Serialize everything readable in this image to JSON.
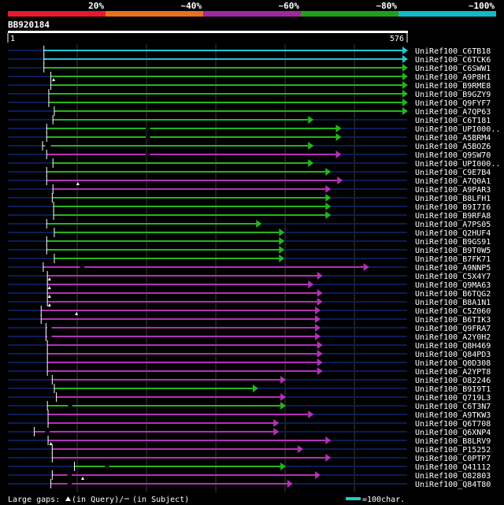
{
  "query": {
    "id": "BB920184",
    "start": "1",
    "end": "576",
    "length": 576
  },
  "legend": {
    "bins": [
      {
        "label": "20%",
        "color": "#e8172e"
      },
      {
        "label": "~40%",
        "color": "#e8711d"
      },
      {
        "label": "~60%",
        "color": "#a0289e"
      },
      {
        "label": "~80%",
        "color": "#1ea11a"
      },
      {
        "label": "~100%",
        "color": "#13b8c4"
      }
    ]
  },
  "colors": {
    "cyan": "#20c8d0",
    "green": "#22b61d",
    "magenta": "#b430b8",
    "navy": "#0c1c55",
    "grid": "#3a3a3a"
  },
  "hits": [
    {
      "name": "UniRef100_C6TB18",
      "qstart": 52,
      "qend": 576,
      "color": "cyan"
    },
    {
      "name": "UniRef100_C6TCK6",
      "qstart": 52,
      "qend": 576,
      "color": "cyan"
    },
    {
      "name": "UniRef100_C6SWW1",
      "qstart": 52,
      "qend": 576,
      "color": "green"
    },
    {
      "name": "UniRef100_A9P8H1",
      "qstart": 62,
      "qend": 576,
      "color": "green",
      "qgap": 66
    },
    {
      "name": "UniRef100_B9RME8",
      "qstart": 62,
      "qend": 576,
      "color": "green"
    },
    {
      "name": "UniRef100_B9GZY9",
      "qstart": 59,
      "qend": 576,
      "color": "green"
    },
    {
      "name": "UniRef100_Q9FYF7",
      "qstart": 59,
      "qend": 576,
      "color": "green"
    },
    {
      "name": "UniRef100_A7QP63",
      "qstart": 67,
      "qend": 576,
      "color": "green"
    },
    {
      "name": "UniRef100_C6T181",
      "qstart": 65,
      "qend": 440,
      "color": "green"
    },
    {
      "name": "UniRef100_UPI000..",
      "qstart": 56,
      "qend": 480,
      "color": "green",
      "sgap": [
        199,
        205
      ]
    },
    {
      "name": "UniRef100_A5BRM4",
      "qstart": 56,
      "qend": 480,
      "color": "green",
      "sgap": [
        199,
        205
      ]
    },
    {
      "name": "UniRef100_A5BOZ6",
      "qstart": 50,
      "qend": 440,
      "color": "green",
      "sgap": [
        54,
        62
      ]
    },
    {
      "name": "UniRef100_Q9SW70",
      "qstart": 56,
      "qend": 480,
      "color": "magenta",
      "sgap": [
        199,
        205
      ]
    },
    {
      "name": "UniRef100_UPI000..",
      "qstart": 65,
      "qend": 440,
      "color": "green"
    },
    {
      "name": "UniRef100_C9E7B4",
      "qstart": 56,
      "qend": 465,
      "color": "green"
    },
    {
      "name": "UniRef100_A7Q0A1",
      "qstart": 56,
      "qend": 482,
      "color": "magenta",
      "qgap": 101
    },
    {
      "name": "UniRef100_A9PAR3",
      "qstart": 65,
      "qend": 465,
      "color": "magenta"
    },
    {
      "name": "UniRef100_B8LFH1",
      "qstart": 64,
      "qend": 465,
      "color": "green"
    },
    {
      "name": "UniRef100_B9I7I6",
      "qstart": 66,
      "qend": 465,
      "color": "green"
    },
    {
      "name": "UniRef100_B9RFA8",
      "qstart": 66,
      "qend": 465,
      "color": "green"
    },
    {
      "name": "UniRef100_A7PS05",
      "qstart": 56,
      "qend": 365,
      "color": "green"
    },
    {
      "name": "UniRef100_Q2HUF4",
      "qstart": 67,
      "qend": 398,
      "color": "green"
    },
    {
      "name": "UniRef100_B9GS91",
      "qstart": 56,
      "qend": 398,
      "color": "green"
    },
    {
      "name": "UniRef100_B9T0W5",
      "qstart": 56,
      "qend": 398,
      "color": "green"
    },
    {
      "name": "UniRef100_B7FK71",
      "qstart": 67,
      "qend": 398,
      "color": "green"
    },
    {
      "name": "UniRef100_A9NNP5",
      "qstart": 51,
      "qend": 520,
      "color": "magenta",
      "sgap": [
        104,
        110
      ]
    },
    {
      "name": "UniRef100_C5X4Y7",
      "qstart": 57,
      "qend": 453,
      "color": "magenta",
      "qgap": 60
    },
    {
      "name": "UniRef100_Q9MA63",
      "qstart": 57,
      "qend": 440,
      "color": "magenta",
      "qgap": 60
    },
    {
      "name": "UniRef100_B6TQG2",
      "qstart": 57,
      "qend": 453,
      "color": "magenta",
      "qgap": 60
    },
    {
      "name": "UniRef100_B8A1N1",
      "qstart": 57,
      "qend": 453,
      "color": "magenta",
      "qgap": 60
    },
    {
      "name": "UniRef100_C5Z060",
      "qstart": 48,
      "qend": 450,
      "color": "magenta",
      "qgap": 99
    },
    {
      "name": "UniRef100_B6TIK3",
      "qstart": 48,
      "qend": 450,
      "color": "magenta"
    },
    {
      "name": "UniRef100_Q9FRA7",
      "qstart": 55,
      "qend": 450,
      "color": "magenta",
      "sgap": [
        57,
        63
      ]
    },
    {
      "name": "UniRef100_A2Y0H2",
      "qstart": 55,
      "qend": 450,
      "color": "magenta",
      "sgap": [
        57,
        63
      ]
    },
    {
      "name": "UniRef100_Q8H469",
      "qstart": 57,
      "qend": 453,
      "color": "magenta"
    },
    {
      "name": "UniRef100_Q84PD3",
      "qstart": 57,
      "qend": 453,
      "color": "magenta"
    },
    {
      "name": "UniRef100_Q0D308",
      "qstart": 57,
      "qend": 453,
      "color": "magenta"
    },
    {
      "name": "UniRef100_A2YPT8",
      "qstart": 57,
      "qend": 453,
      "color": "magenta"
    },
    {
      "name": "UniRef100_O82246",
      "qstart": 64,
      "qend": 400,
      "color": "magenta"
    },
    {
      "name": "UniRef100_B9I9T1",
      "qstart": 67,
      "qend": 360,
      "color": "green"
    },
    {
      "name": "UniRef100_Q719L3",
      "qstart": 70,
      "qend": 400,
      "color": "magenta"
    },
    {
      "name": "UniRef100_C6T3N7",
      "qstart": 57,
      "qend": 400,
      "color": "green",
      "sgap": [
        87,
        93
      ]
    },
    {
      "name": "UniRef100_A9TKW3",
      "qstart": 58,
      "qend": 440,
      "color": "magenta"
    },
    {
      "name": "UniRef100_Q6T708",
      "qstart": 58,
      "qend": 390,
      "color": "magenta"
    },
    {
      "name": "UniRef100_Q6XNP4",
      "qstart": 38,
      "qend": 390,
      "color": "magenta",
      "sgap": [
        54,
        60
      ]
    },
    {
      "name": "UniRef100_B8LRV9",
      "qstart": 58,
      "qend": 465,
      "color": "magenta",
      "qgap": 62
    },
    {
      "name": "UniRef100_P15252",
      "qstart": 64,
      "qend": 425,
      "color": "magenta"
    },
    {
      "name": "UniRef100_C0PTP7",
      "qstart": 64,
      "qend": 465,
      "color": "magenta"
    },
    {
      "name": "UniRef100_Q41112",
      "qstart": 96,
      "qend": 400,
      "color": "green",
      "sgap": [
        140,
        146
      ]
    },
    {
      "name": "UniRef100_O82803",
      "qstart": 64,
      "qend": 450,
      "color": "magenta",
      "qgap": 108,
      "sgap": [
        86,
        92
      ]
    },
    {
      "name": "UniRef100_Q84T80",
      "qstart": 62,
      "qend": 410,
      "color": "magenta",
      "sgap": [
        86,
        92
      ]
    }
  ],
  "footer": {
    "gap_label_a": "Large gaps:",
    "gap_label_b": "(in Query)/",
    "gap_label_c": "(in Subject)",
    "scale_label": "=100char."
  }
}
